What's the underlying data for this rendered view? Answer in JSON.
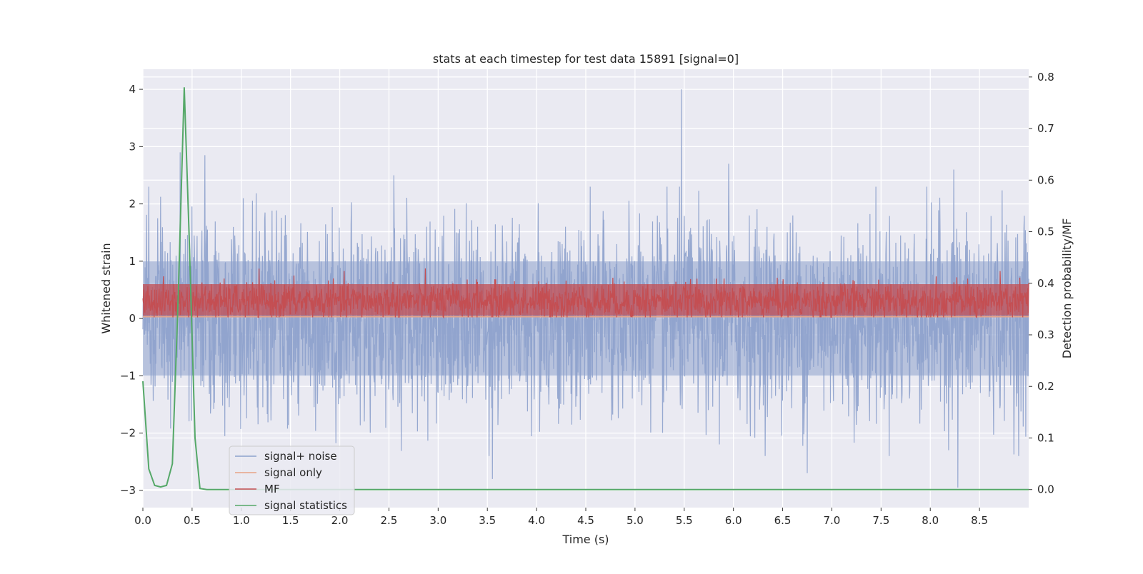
{
  "chart_data": {
    "type": "line",
    "title": "stats at each timestep for test data 15891 [signal=0]",
    "xlabel": "Time (s)",
    "ylabel": "Whitened strain",
    "y2label": "Detection probability/MF",
    "xlim": [
      0.0,
      9.0
    ],
    "ylim": [
      -3.3,
      4.35
    ],
    "y2lim": [
      -0.035,
      0.815
    ],
    "xticks": [
      0.0,
      0.5,
      1.0,
      1.5,
      2.0,
      2.5,
      3.0,
      3.5,
      4.0,
      4.5,
      5.0,
      5.5,
      6.0,
      6.5,
      7.0,
      7.5,
      8.0,
      8.5
    ],
    "xtick_labels": [
      "0.0",
      "0.5",
      "1.0",
      "1.5",
      "2.0",
      "2.5",
      "3.0",
      "3.5",
      "4.0",
      "4.5",
      "5.0",
      "5.5",
      "6.0",
      "6.5",
      "7.0",
      "7.5",
      "8.0",
      "8.5"
    ],
    "yticks": [
      4,
      3,
      2,
      1,
      0,
      -1,
      -2,
      -3
    ],
    "ytick_labels": [
      "4",
      "3",
      "2",
      "1",
      "0",
      "−1",
      "−2",
      "−3"
    ],
    "y2ticks": [
      0.8,
      0.7,
      0.6,
      0.5,
      0.4,
      0.3,
      0.2,
      0.1,
      0.0
    ],
    "y2tick_labels": [
      "0.8",
      "0.7",
      "0.6",
      "0.5",
      "0.4",
      "0.3",
      "0.2",
      "0.1",
      "0.0"
    ],
    "legend_location": "lower-left",
    "series": [
      {
        "name": "signal+ noise",
        "axis": "left",
        "color": "#8da1cc",
        "description": "whitened noise, approx. range -2.9 to 4.0",
        "noise_band": [
          -1.0,
          1.0
        ],
        "peaks": [
          [
            0.06,
            2.3
          ],
          [
            0.38,
            2.9
          ],
          [
            0.63,
            2.85
          ],
          [
            2.55,
            2.5
          ],
          [
            5.47,
            4.0
          ],
          [
            5.95,
            2.7
          ],
          [
            8.24,
            2.6
          ],
          [
            3.55,
            -2.8
          ],
          [
            6.75,
            -2.7
          ],
          [
            8.28,
            -2.95
          ]
        ]
      },
      {
        "name": "signal only",
        "axis": "left",
        "color": "#e8a386",
        "x": [
          0.0,
          9.0
        ],
        "y": [
          0.03,
          0.03
        ]
      },
      {
        "name": "MF",
        "axis": "left",
        "color": "#c44e52",
        "description": "matched filter output, approx. range 0.0 to 1.0",
        "band": [
          0.05,
          0.6
        ]
      },
      {
        "name": "signal statistics",
        "axis": "right",
        "color": "#55a868",
        "x": [
          0.0,
          0.06,
          0.12,
          0.18,
          0.24,
          0.3,
          0.36,
          0.42,
          0.47,
          0.53,
          0.58,
          0.65,
          1.0,
          2.0,
          3.0,
          4.0,
          5.0,
          6.0,
          7.0,
          8.0,
          9.0
        ],
        "y": [
          0.21,
          0.04,
          0.008,
          0.005,
          0.008,
          0.05,
          0.38,
          0.78,
          0.49,
          0.1,
          0.002,
          0.0,
          0.0,
          0.0,
          0.0,
          0.0,
          0.0,
          0.0,
          0.0,
          0.0,
          0.0
        ]
      }
    ]
  }
}
